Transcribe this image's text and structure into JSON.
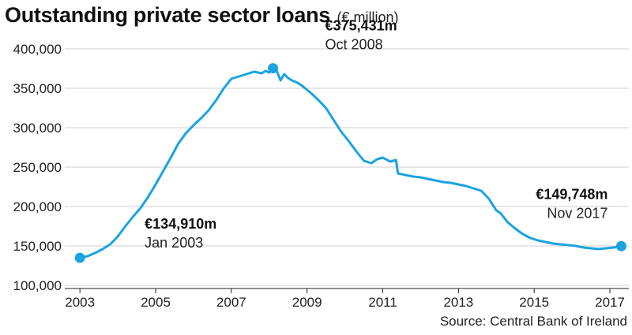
{
  "header": {
    "title": "Outstanding private sector loans",
    "subtitle": "(€ million)"
  },
  "source": "Source: Central Bank of Ireland",
  "chart_data": {
    "type": "line",
    "title": "Outstanding private sector loans",
    "subtitle": "(€ million)",
    "xlabel": "",
    "ylabel": "",
    "xlim": [
      2002.6,
      2017.5
    ],
    "ylim": [
      100000,
      400000
    ],
    "yticks": [
      100000,
      150000,
      200000,
      250000,
      300000,
      350000,
      400000
    ],
    "ytick_labels": [
      "100,000",
      "150,000",
      "200,000",
      "250,000",
      "300,000",
      "350,000",
      "400,000"
    ],
    "xticks": [
      2003,
      2005,
      2007,
      2009,
      2011,
      2013,
      2015,
      2017
    ],
    "xtick_labels": [
      "2003",
      "2005",
      "2007",
      "2009",
      "2011",
      "2013",
      "2015",
      "2017"
    ],
    "grid": "horizontal",
    "line_color": "#1aa3e0",
    "series": [
      {
        "name": "",
        "x": [
          2003.0,
          2003.2,
          2003.4,
          2003.6,
          2003.8,
          2004.0,
          2004.2,
          2004.4,
          2004.6,
          2004.8,
          2005.0,
          2005.2,
          2005.4,
          2005.6,
          2005.8,
          2006.0,
          2006.2,
          2006.4,
          2006.6,
          2006.8,
          2007.0,
          2007.2,
          2007.4,
          2007.6,
          2007.8,
          2007.9,
          2008.0,
          2008.1,
          2008.2,
          2008.3,
          2008.4,
          2008.5,
          2008.6,
          2008.75,
          2008.9,
          2009.1,
          2009.3,
          2009.5,
          2009.7,
          2009.9,
          2010.1,
          2010.3,
          2010.5,
          2010.7,
          2010.85,
          2011.0,
          2011.2,
          2011.35,
          2011.4,
          2011.6,
          2011.8,
          2012.0,
          2012.2,
          2012.4,
          2012.5,
          2012.6,
          2012.8,
          2013.0,
          2013.2,
          2013.4,
          2013.6,
          2013.8,
          2014.0,
          2014.1,
          2014.3,
          2014.5,
          2014.7,
          2014.9,
          2015.1,
          2015.3,
          2015.5,
          2015.7,
          2015.9,
          2016.1,
          2016.3,
          2016.5,
          2016.7,
          2016.9,
          2017.1,
          2017.3
        ],
        "values": [
          134910,
          137000,
          141000,
          146000,
          152000,
          162000,
          175000,
          187000,
          198000,
          212000,
          228000,
          245000,
          262000,
          280000,
          293000,
          303000,
          312000,
          322000,
          335000,
          350000,
          362000,
          365000,
          368000,
          371000,
          369000,
          372000,
          370000,
          375431,
          372000,
          360000,
          368000,
          363000,
          360000,
          357000,
          352000,
          344000,
          335000,
          325000,
          310000,
          295000,
          283000,
          270000,
          258000,
          255000,
          260000,
          262000,
          257000,
          259000,
          242000,
          240000,
          238000,
          237000,
          235000,
          233000,
          232000,
          231000,
          230000,
          228000,
          226000,
          223000,
          220000,
          210000,
          195000,
          192000,
          180000,
          172000,
          165000,
          160000,
          157000,
          155000,
          153000,
          152000,
          151000,
          150000,
          148000,
          147000,
          146000,
          147000,
          148000,
          149748
        ]
      }
    ],
    "annotations": [
      {
        "x": 2003.0,
        "y": 134910,
        "value_label": "€134,910m",
        "date_label": "Jan 2003"
      },
      {
        "x": 2008.1,
        "y": 375431,
        "value_label": "€375,431m",
        "date_label": "Oct 2008"
      },
      {
        "x": 2017.3,
        "y": 149748,
        "value_label": "€149,748m",
        "date_label": "Nov 2017"
      }
    ]
  }
}
